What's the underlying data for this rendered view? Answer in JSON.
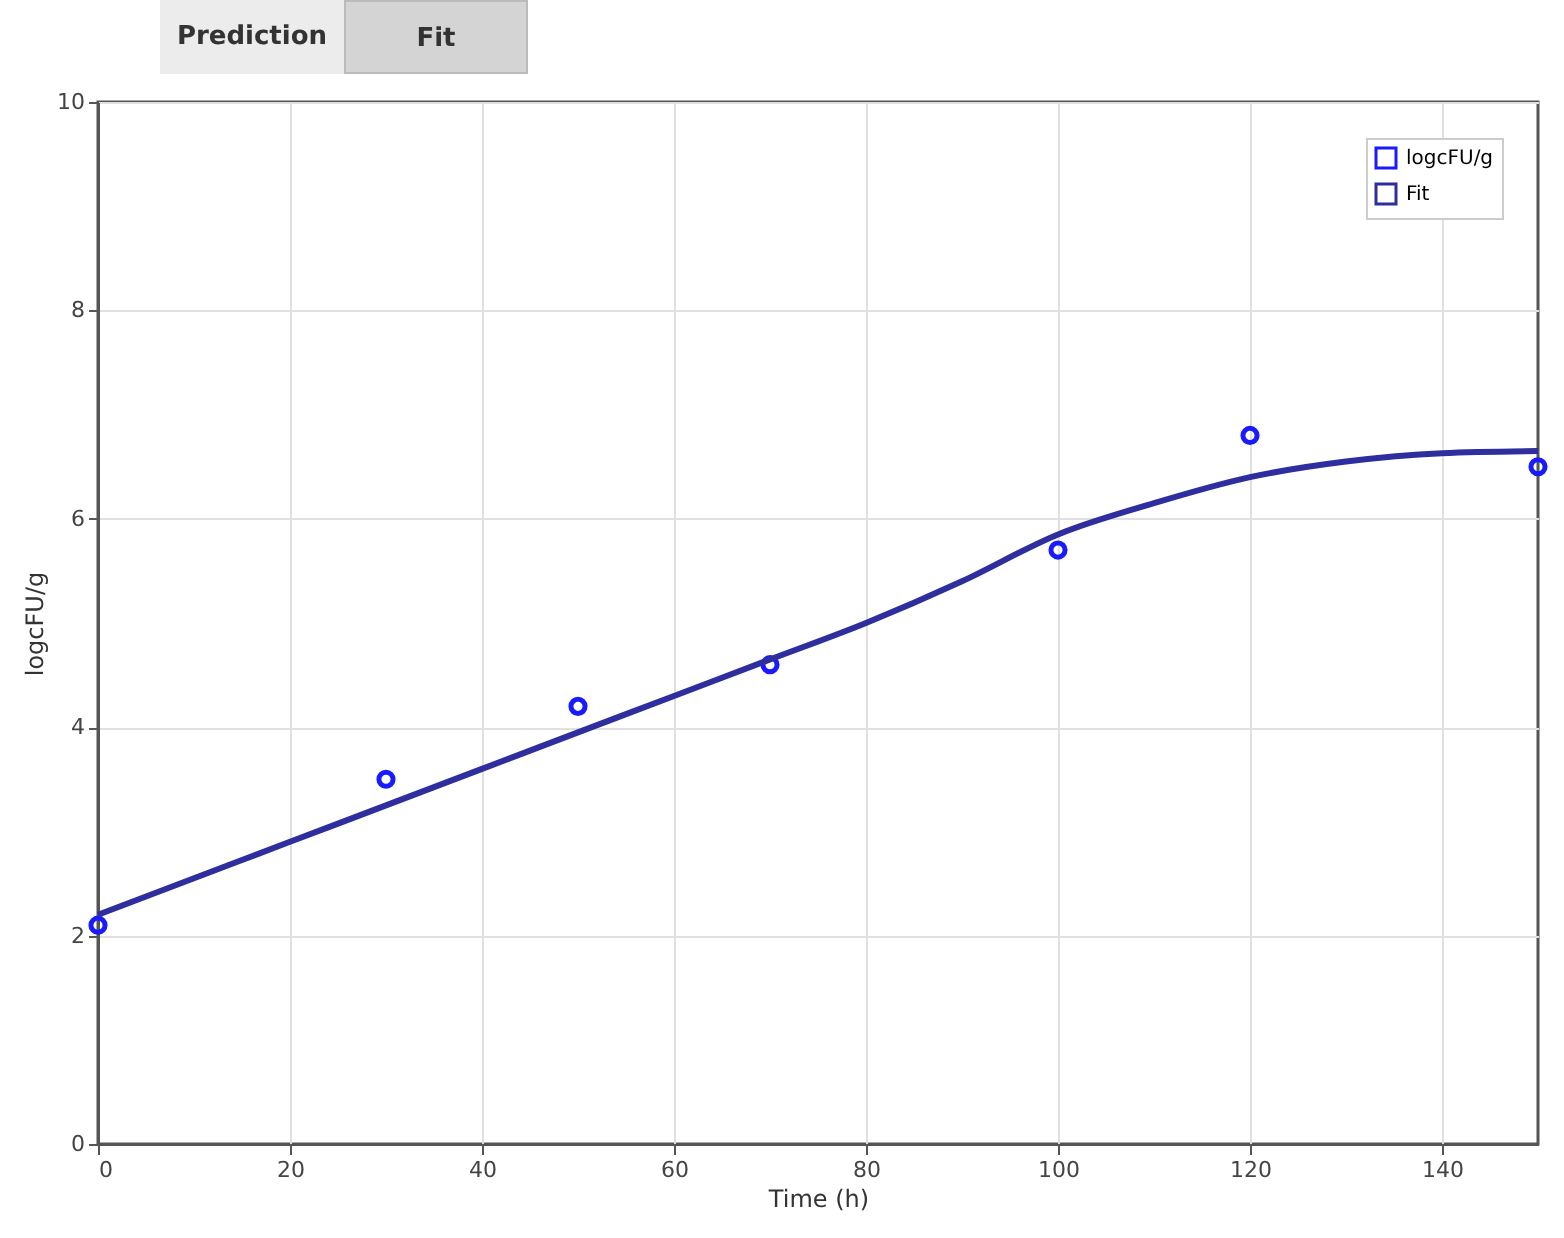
{
  "chart_data": {
    "type": "scatter",
    "xlabel": "Time (h)",
    "ylabel": "logcFU/g",
    "annotations": [
      "Prediction",
      "Fit"
    ],
    "xlim": [
      0,
      150
    ],
    "xticks": [
      0,
      20,
      40,
      60,
      80,
      100,
      120,
      140
    ],
    "ylim": [
      0,
      10
    ],
    "yticks": [
      0,
      2,
      4,
      6,
      8,
      10
    ],
    "grid": true,
    "legend": "top right",
    "series": [
      {
        "name": "logcFU/g",
        "marker": "circle",
        "color": "#1a1aff",
        "x": [
          0,
          30,
          50,
          70,
          100,
          120,
          150
        ],
        "values": [
          2.1,
          3.5,
          4.2,
          4.6,
          5.7,
          6.8,
          6.5
        ]
      },
      {
        "name": "Fit",
        "type": "line",
        "marker": "none",
        "color": "#2e2e9e",
        "x": [
          0,
          10,
          20,
          30,
          40,
          50,
          60,
          70,
          80,
          90,
          100,
          110,
          120,
          130,
          140,
          150
        ],
        "values": [
          2.2,
          2.55,
          2.9,
          3.25,
          3.6,
          3.95,
          4.3,
          4.65,
          5.0,
          5.4,
          5.85,
          6.15,
          6.4,
          6.55,
          6.63,
          6.65
        ]
      }
    ]
  }
}
